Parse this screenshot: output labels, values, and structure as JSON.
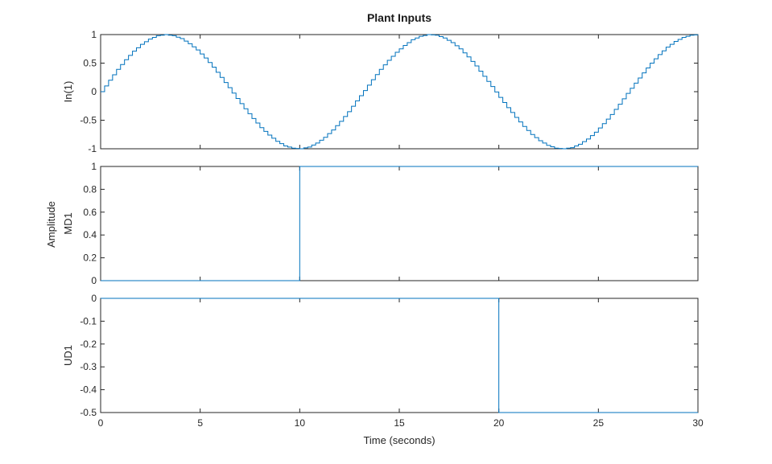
{
  "figure": {
    "title": "Plant Inputs",
    "common_ylabel": "Amplitude",
    "xlabel": "Time (seconds)"
  },
  "colors": {
    "series": "#0072BD",
    "axes": "#262626",
    "background": "#ffffff"
  },
  "chart_data": [
    {
      "type": "line",
      "step": true,
      "ylabel": "In(1)",
      "xlim": [
        0,
        30
      ],
      "ylim": [
        -1,
        1
      ],
      "yticks": [
        -1,
        -0.5,
        0,
        0.5,
        1
      ],
      "ytick_labels": [
        "-1",
        "-0.5",
        "0",
        "0.5",
        "1"
      ],
      "grid": false,
      "sample_time": 0.2,
      "x": [
        0,
        0.4,
        0.8,
        1.2,
        1.6,
        2.0,
        2.4,
        2.8,
        3.2,
        3.6,
        4.0,
        4.4,
        4.8,
        5.2,
        5.6,
        6.0,
        6.4,
        6.8,
        7.2,
        7.6,
        8.0,
        8.4,
        8.8,
        9.2,
        9.6,
        10.0,
        10.4,
        10.8,
        11.2,
        11.6,
        12.0,
        12.4,
        12.8,
        13.2,
        13.6,
        14.0,
        14.4,
        14.8,
        15.2,
        15.6,
        16.0,
        16.4,
        16.8,
        17.2,
        17.6,
        18.0,
        18.4,
        18.8,
        19.2,
        19.6,
        20.0,
        20.4,
        20.8,
        21.2,
        21.6,
        22.0,
        22.4,
        22.8,
        23.2,
        23.6,
        24.0,
        24.4,
        24.8,
        25.2,
        25.6,
        26.0,
        26.4,
        26.8,
        27.2,
        27.6,
        28.0,
        28.4,
        28.8,
        29.2,
        29.6,
        30.0
      ],
      "y": [
        0,
        0.2,
        0.39,
        0.56,
        0.71,
        0.83,
        0.92,
        0.98,
        1.0,
        0.98,
        0.93,
        0.84,
        0.73,
        0.59,
        0.43,
        0.25,
        0.07,
        -0.12,
        -0.3,
        -0.47,
        -0.63,
        -0.76,
        -0.87,
        -0.95,
        -0.99,
        -1.0,
        -0.97,
        -0.9,
        -0.8,
        -0.67,
        -0.52,
        -0.35,
        -0.16,
        0.02,
        0.21,
        0.39,
        0.55,
        0.69,
        0.81,
        0.91,
        0.97,
        1.0,
        0.99,
        0.94,
        0.86,
        0.75,
        0.61,
        0.45,
        0.27,
        0.09,
        -0.1,
        -0.28,
        -0.45,
        -0.61,
        -0.75,
        -0.86,
        -0.94,
        -0.99,
        -1.0,
        -0.98,
        -0.92,
        -0.83,
        -0.71,
        -0.56,
        -0.4,
        -0.22,
        -0.03,
        0.15,
        0.33,
        0.5,
        0.65,
        0.78,
        0.88,
        0.95,
        0.99,
        1.0
      ],
      "series": [
        {
          "data": "sampled sine, period ~12.57 s, unit amplitude"
        }
      ]
    },
    {
      "type": "line",
      "step": true,
      "ylabel": "MD1",
      "xlim": [
        0,
        30
      ],
      "ylim": [
        0,
        1
      ],
      "yticks": [
        0,
        0.2,
        0.4,
        0.6,
        0.8,
        1
      ],
      "ytick_labels": [
        "0",
        "0.2",
        "0.4",
        "0.6",
        "0.8",
        "1"
      ],
      "grid": false,
      "x": [
        0,
        10,
        10,
        30
      ],
      "y": [
        0,
        0,
        1,
        1
      ]
    },
    {
      "type": "line",
      "step": true,
      "ylabel": "UD1",
      "xlim": [
        0,
        30
      ],
      "ylim": [
        -0.5,
        0
      ],
      "yticks": [
        -0.5,
        -0.4,
        -0.3,
        -0.2,
        -0.1,
        0
      ],
      "ytick_labels": [
        "-0.5",
        "-0.4",
        "-0.3",
        "-0.2",
        "-0.1",
        "0"
      ],
      "xticks": [
        0,
        5,
        10,
        15,
        20,
        25,
        30
      ],
      "xtick_labels": [
        "0",
        "5",
        "10",
        "15",
        "20",
        "25",
        "30"
      ],
      "grid": false,
      "x": [
        0,
        20,
        20,
        30
      ],
      "y": [
        0,
        0,
        -0.5,
        -0.5
      ]
    }
  ]
}
